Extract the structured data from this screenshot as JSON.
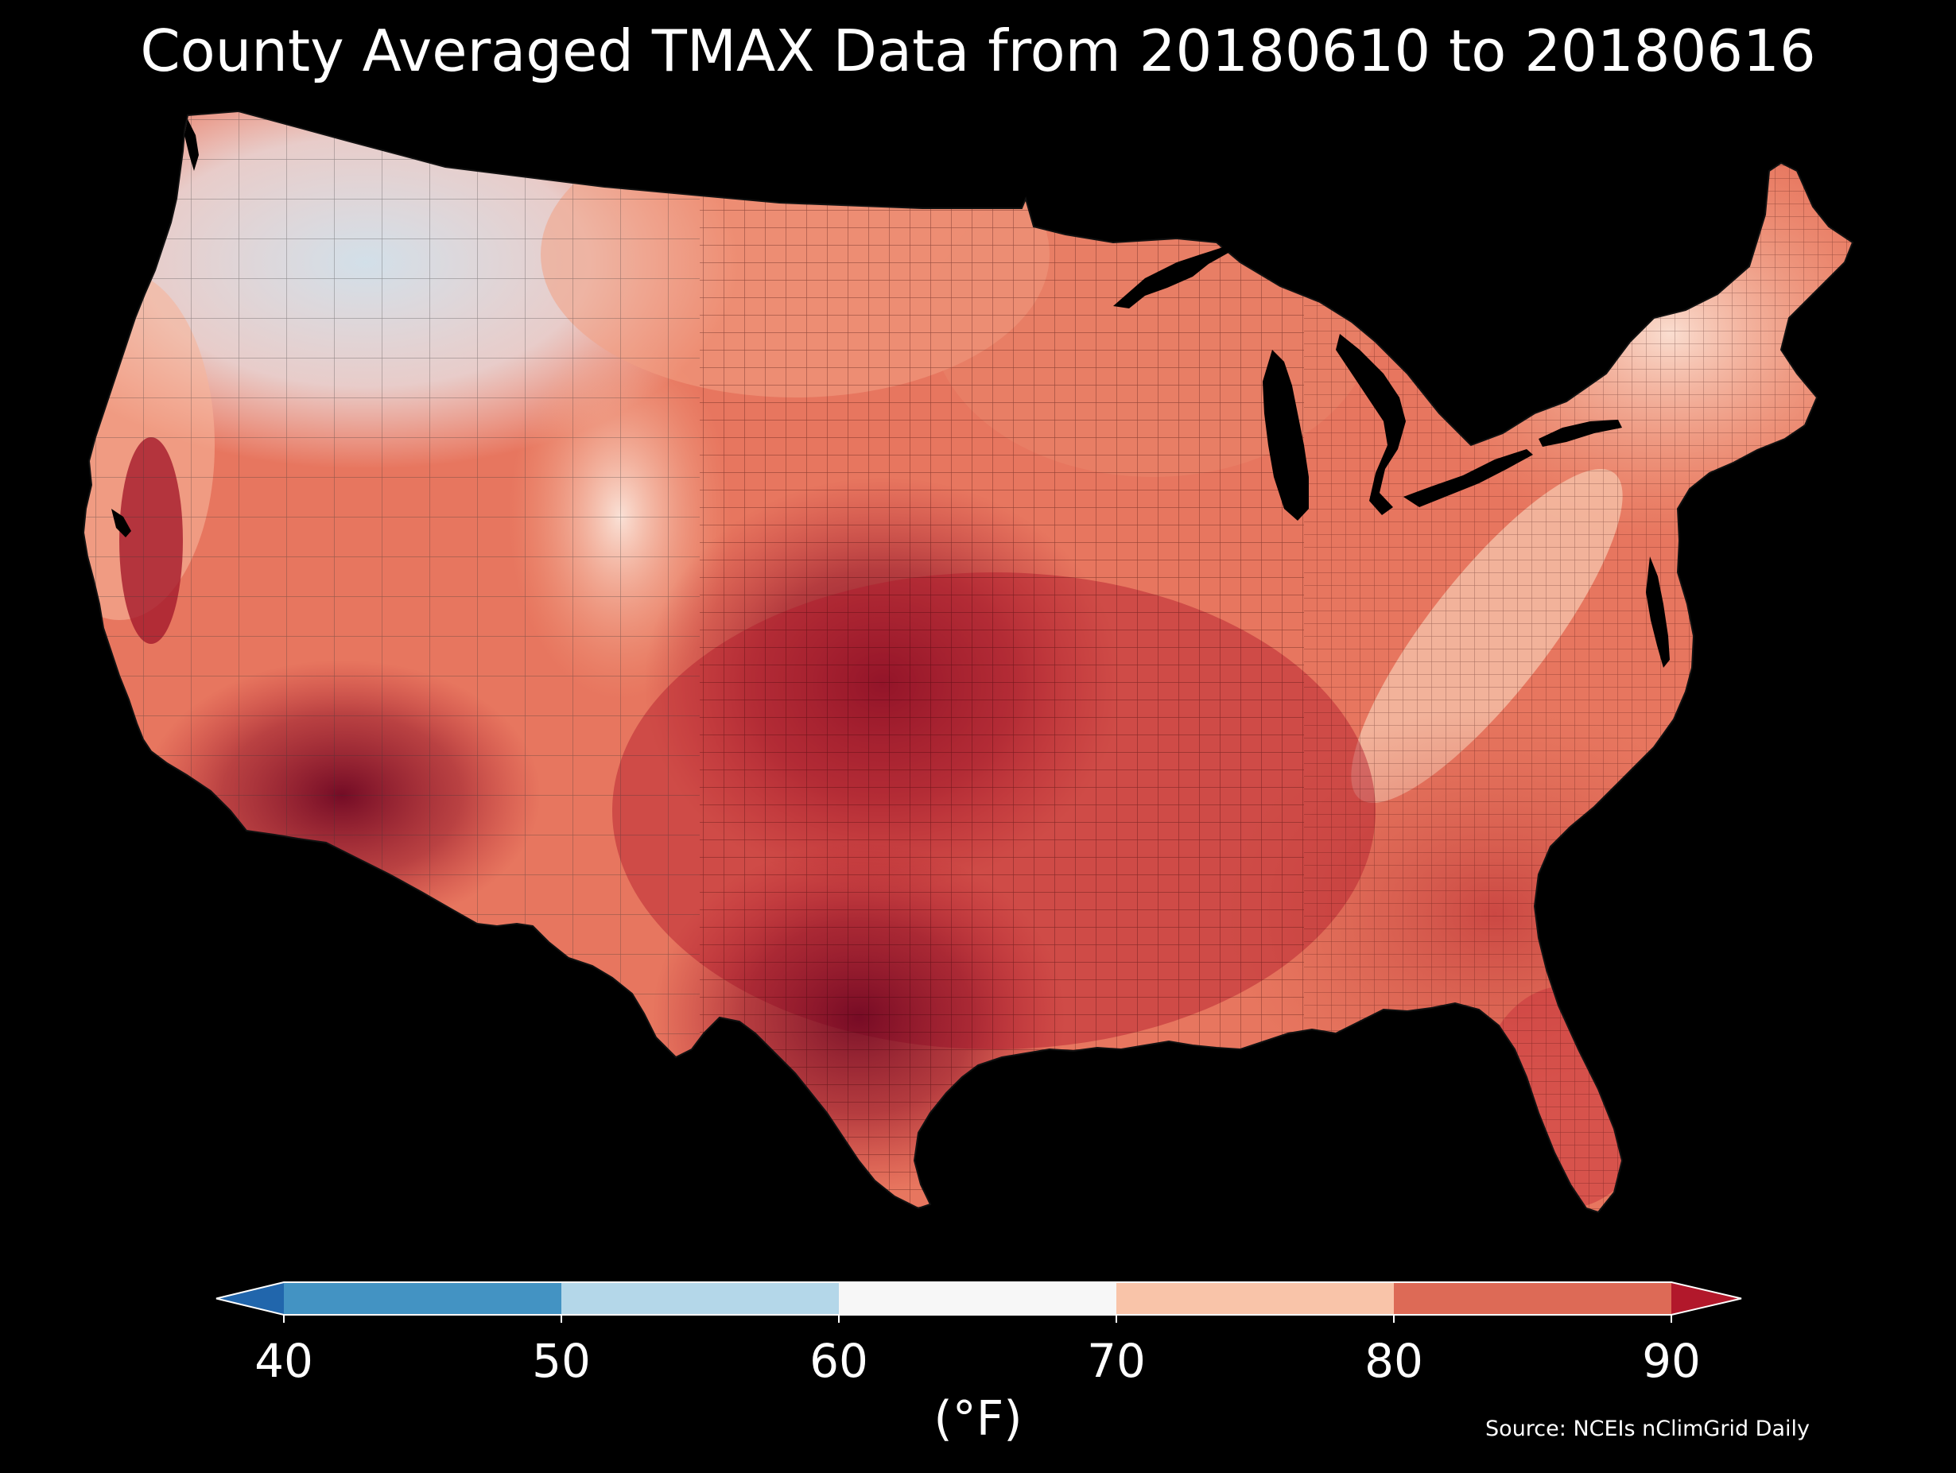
{
  "title": "County Averaged TMAX Data from 20180610 to 20180616",
  "colorbar": {
    "ticks": [
      "40",
      "50",
      "60",
      "70",
      "80",
      "90"
    ],
    "units": "(°F)",
    "range": [
      40,
      90
    ],
    "extend": "both",
    "bins": [
      {
        "from": 40,
        "to": 50,
        "color": "#4393c3"
      },
      {
        "from": 50,
        "to": 60,
        "color": "#b4d7e9"
      },
      {
        "from": 60,
        "to": 70,
        "color": "#f7f7f7"
      },
      {
        "from": 70,
        "to": 80,
        "color": "#f9c4a9"
      },
      {
        "from": 80,
        "to": 90,
        "color": "#dd6a56"
      }
    ],
    "under_color": "#2166ac",
    "over_color": "#b2182b"
  },
  "source": "Source: NCEIs nClimGrid Daily",
  "colors": {
    "background": "#000000",
    "text": "#ffffff",
    "county_border": "#222222"
  }
}
